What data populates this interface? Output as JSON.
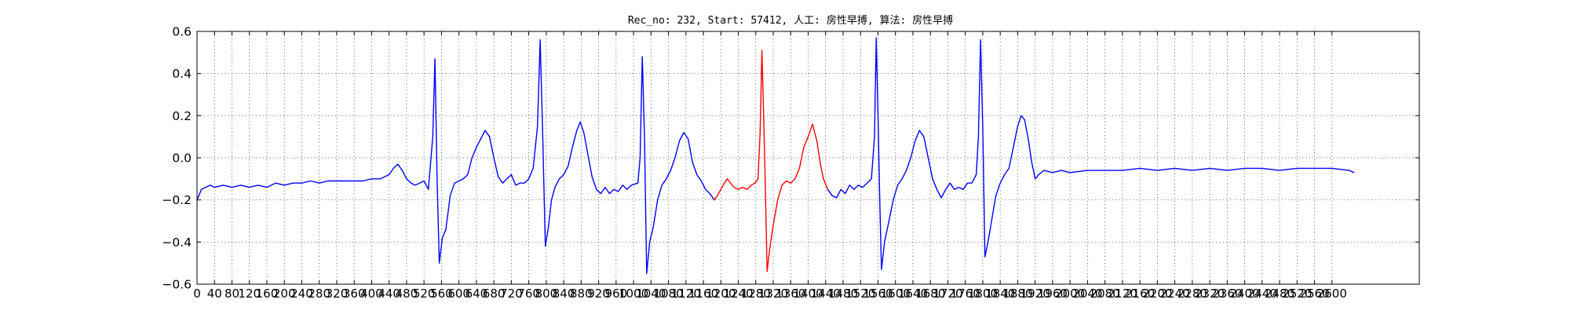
{
  "chart_data": {
    "type": "line",
    "title": "Rec_no: 232, Start: 57412, 人工: 房性早搏, 算法: 房性早搏",
    "xlabel": "",
    "ylabel": "",
    "xlim": [
      0,
      2800
    ],
    "ylim": [
      -0.6,
      0.6
    ],
    "grid": true,
    "legend": "none",
    "x_tick_values": [
      0,
      40,
      80,
      120,
      160,
      200,
      240,
      280,
      320,
      360,
      400,
      440,
      480,
      520,
      560,
      600,
      640,
      680,
      720,
      760,
      800,
      840,
      880,
      920,
      960,
      1000,
      1040,
      1080,
      1120,
      1160,
      1200,
      1240,
      1280,
      1320,
      1360,
      1400,
      1440,
      1480,
      1520,
      1560,
      1600,
      1640,
      1680,
      1720,
      1760,
      1800,
      1840,
      1880,
      1920,
      1960,
      2000,
      2040,
      2080,
      2120,
      2160,
      2200,
      2240,
      2280,
      2320,
      2360,
      2400,
      2440,
      2480,
      2520,
      2560,
      2600
    ],
    "x_tick_labels": [
      "0",
      "40",
      "80",
      "120",
      "160",
      "200",
      "240",
      "280",
      "320",
      "360",
      "400",
      "440",
      "480",
      "520",
      "560",
      "600",
      "640",
      "680",
      "720",
      "760",
      "800",
      "840",
      "880",
      "920",
      "960",
      "1000",
      "1040",
      "1080",
      "1120",
      "1160",
      "1200",
      "1240",
      "1280",
      "1320",
      "1360",
      "1400",
      "1440",
      "1480",
      "1520",
      "1560",
      "1600",
      "1640",
      "1680",
      "1720",
      "1760",
      "1800",
      "1840",
      "1880",
      "1920",
      "1960",
      "2000",
      "2040",
      "2080",
      "2120",
      "2160",
      "2200",
      "2240",
      "2280",
      "2320",
      "2360",
      "2400",
      "2440",
      "2480",
      "2520",
      "2560",
      "2600"
    ],
    "y_tick_values": [
      -0.6,
      -0.4,
      -0.2,
      0.0,
      0.2,
      0.4,
      0.6
    ],
    "y_tick_labels": [
      "−0.6",
      "−0.4",
      "−0.2",
      "0.0",
      "0.2",
      "0.4",
      "0.6"
    ],
    "colors": {
      "normal": "#0000ff",
      "highlight": "#ff0000"
    },
    "series": [
      {
        "color": "blue",
        "points": [
          [
            0,
            -0.2
          ],
          [
            10,
            -0.15
          ],
          [
            20,
            -0.14
          ],
          [
            30,
            -0.13
          ],
          [
            40,
            -0.14
          ],
          [
            60,
            -0.13
          ],
          [
            80,
            -0.14
          ],
          [
            100,
            -0.13
          ],
          [
            120,
            -0.14
          ],
          [
            140,
            -0.13
          ],
          [
            160,
            -0.14
          ],
          [
            180,
            -0.12
          ],
          [
            200,
            -0.13
          ],
          [
            220,
            -0.12
          ],
          [
            240,
            -0.12
          ],
          [
            260,
            -0.11
          ],
          [
            280,
            -0.12
          ],
          [
            300,
            -0.11
          ],
          [
            320,
            -0.11
          ],
          [
            340,
            -0.11
          ],
          [
            360,
            -0.11
          ],
          [
            380,
            -0.11
          ],
          [
            400,
            -0.1
          ],
          [
            420,
            -0.1
          ],
          [
            440,
            -0.08
          ],
          [
            450,
            -0.05
          ],
          [
            460,
            -0.03
          ],
          [
            470,
            -0.06
          ],
          [
            480,
            -0.1
          ],
          [
            490,
            -0.12
          ],
          [
            500,
            -0.13
          ],
          [
            510,
            -0.12
          ],
          [
            520,
            -0.11
          ],
          [
            530,
            -0.15
          ],
          [
            540,
            0.1
          ],
          [
            545,
            0.47
          ],
          [
            550,
            -0.1
          ],
          [
            555,
            -0.5
          ],
          [
            562,
            -0.38
          ],
          [
            570,
            -0.34
          ],
          [
            580,
            -0.18
          ],
          [
            590,
            -0.12
          ],
          [
            600,
            -0.11
          ],
          [
            610,
            -0.1
          ],
          [
            620,
            -0.08
          ],
          [
            630,
            0.0
          ],
          [
            640,
            0.05
          ],
          [
            650,
            0.09
          ],
          [
            660,
            0.13
          ],
          [
            670,
            0.1
          ],
          [
            680,
            0.0
          ],
          [
            690,
            -0.09
          ],
          [
            700,
            -0.12
          ],
          [
            710,
            -0.1
          ],
          [
            720,
            -0.08
          ],
          [
            730,
            -0.13
          ],
          [
            740,
            -0.12
          ],
          [
            750,
            -0.12
          ],
          [
            760,
            -0.1
          ],
          [
            770,
            -0.05
          ],
          [
            780,
            0.15
          ],
          [
            786,
            0.56
          ],
          [
            792,
            0.1
          ],
          [
            798,
            -0.42
          ],
          [
            805,
            -0.33
          ],
          [
            812,
            -0.2
          ],
          [
            820,
            -0.14
          ],
          [
            830,
            -0.1
          ],
          [
            840,
            -0.08
          ],
          [
            850,
            -0.04
          ],
          [
            860,
            0.05
          ],
          [
            870,
            0.13
          ],
          [
            878,
            0.17
          ],
          [
            886,
            0.12
          ],
          [
            895,
            0.02
          ],
          [
            905,
            -0.09
          ],
          [
            915,
            -0.15
          ],
          [
            925,
            -0.17
          ],
          [
            935,
            -0.14
          ],
          [
            945,
            -0.17
          ],
          [
            955,
            -0.15
          ],
          [
            965,
            -0.16
          ],
          [
            975,
            -0.13
          ],
          [
            985,
            -0.15
          ],
          [
            995,
            -0.13
          ],
          [
            1010,
            -0.12
          ],
          [
            1015,
            0.0
          ],
          [
            1020,
            0.48
          ],
          [
            1025,
            0.1
          ],
          [
            1030,
            -0.55
          ],
          [
            1037,
            -0.4
          ],
          [
            1045,
            -0.33
          ],
          [
            1055,
            -0.2
          ],
          [
            1065,
            -0.13
          ],
          [
            1075,
            -0.1
          ],
          [
            1085,
            -0.06
          ],
          [
            1095,
            0.0
          ],
          [
            1105,
            0.08
          ],
          [
            1115,
            0.12
          ],
          [
            1125,
            0.09
          ],
          [
            1135,
            -0.02
          ],
          [
            1145,
            -0.08
          ],
          [
            1155,
            -0.11
          ],
          [
            1165,
            -0.15
          ],
          [
            1175,
            -0.17
          ],
          [
            1185,
            -0.2
          ]
        ]
      },
      {
        "color": "red",
        "points": [
          [
            1185,
            -0.2
          ],
          [
            1192,
            -0.18
          ],
          [
            1200,
            -0.15
          ],
          [
            1208,
            -0.12
          ],
          [
            1215,
            -0.1
          ],
          [
            1222,
            -0.12
          ],
          [
            1230,
            -0.14
          ],
          [
            1240,
            -0.15
          ],
          [
            1250,
            -0.14
          ],
          [
            1260,
            -0.15
          ],
          [
            1270,
            -0.13
          ],
          [
            1278,
            -0.12
          ],
          [
            1285,
            -0.1
          ],
          [
            1290,
            0.12
          ],
          [
            1294,
            0.51
          ],
          [
            1298,
            0.2
          ],
          [
            1302,
            -0.15
          ],
          [
            1306,
            -0.54
          ],
          [
            1312,
            -0.43
          ],
          [
            1320,
            -0.32
          ],
          [
            1330,
            -0.2
          ],
          [
            1340,
            -0.13
          ],
          [
            1350,
            -0.11
          ],
          [
            1360,
            -0.12
          ],
          [
            1370,
            -0.1
          ],
          [
            1380,
            -0.05
          ],
          [
            1390,
            0.05
          ],
          [
            1400,
            0.1
          ],
          [
            1410,
            0.16
          ],
          [
            1420,
            0.08
          ],
          [
            1428,
            -0.03
          ],
          [
            1435,
            -0.1
          ],
          [
            1445,
            -0.15
          ]
        ]
      },
      {
        "color": "blue",
        "points": [
          [
            1445,
            -0.15
          ],
          [
            1455,
            -0.18
          ],
          [
            1465,
            -0.19
          ],
          [
            1475,
            -0.15
          ],
          [
            1485,
            -0.17
          ],
          [
            1495,
            -0.13
          ],
          [
            1505,
            -0.15
          ],
          [
            1515,
            -0.13
          ],
          [
            1525,
            -0.14
          ],
          [
            1535,
            -0.12
          ],
          [
            1545,
            -0.1
          ],
          [
            1552,
            0.1
          ],
          [
            1556,
            0.57
          ],
          [
            1560,
            0.2
          ],
          [
            1564,
            -0.2
          ],
          [
            1568,
            -0.53
          ],
          [
            1575,
            -0.4
          ],
          [
            1585,
            -0.3
          ],
          [
            1595,
            -0.2
          ],
          [
            1605,
            -0.13
          ],
          [
            1615,
            -0.1
          ],
          [
            1625,
            -0.06
          ],
          [
            1635,
            0.0
          ],
          [
            1645,
            0.08
          ],
          [
            1655,
            0.13
          ],
          [
            1665,
            0.1
          ],
          [
            1675,
            0.0
          ],
          [
            1685,
            -0.1
          ],
          [
            1695,
            -0.15
          ],
          [
            1705,
            -0.19
          ],
          [
            1715,
            -0.15
          ],
          [
            1725,
            -0.12
          ],
          [
            1735,
            -0.15
          ],
          [
            1745,
            -0.14
          ],
          [
            1755,
            -0.15
          ],
          [
            1765,
            -0.12
          ],
          [
            1775,
            -0.12
          ],
          [
            1785,
            -0.08
          ],
          [
            1790,
            0.1
          ],
          [
            1795,
            0.56
          ],
          [
            1800,
            0.15
          ],
          [
            1805,
            -0.47
          ],
          [
            1812,
            -0.4
          ],
          [
            1820,
            -0.3
          ],
          [
            1830,
            -0.18
          ],
          [
            1840,
            -0.12
          ],
          [
            1850,
            -0.08
          ],
          [
            1860,
            -0.05
          ],
          [
            1870,
            0.05
          ],
          [
            1880,
            0.15
          ],
          [
            1888,
            0.2
          ],
          [
            1896,
            0.18
          ],
          [
            1905,
            0.08
          ],
          [
            1912,
            -0.02
          ],
          [
            1920,
            -0.1
          ],
          [
            1928,
            -0.08
          ],
          [
            1940,
            -0.06
          ],
          [
            1960,
            -0.07
          ],
          [
            1980,
            -0.06
          ],
          [
            2000,
            -0.07
          ],
          [
            2040,
            -0.06
          ],
          [
            2080,
            -0.06
          ],
          [
            2120,
            -0.06
          ],
          [
            2160,
            -0.05
          ],
          [
            2200,
            -0.06
          ],
          [
            2240,
            -0.05
          ],
          [
            2280,
            -0.06
          ],
          [
            2320,
            -0.05
          ],
          [
            2360,
            -0.06
          ],
          [
            2400,
            -0.05
          ],
          [
            2440,
            -0.05
          ],
          [
            2480,
            -0.06
          ],
          [
            2520,
            -0.05
          ],
          [
            2560,
            -0.05
          ],
          [
            2600,
            -0.05
          ],
          [
            2640,
            -0.06
          ],
          [
            2650,
            -0.07
          ]
        ]
      }
    ]
  }
}
